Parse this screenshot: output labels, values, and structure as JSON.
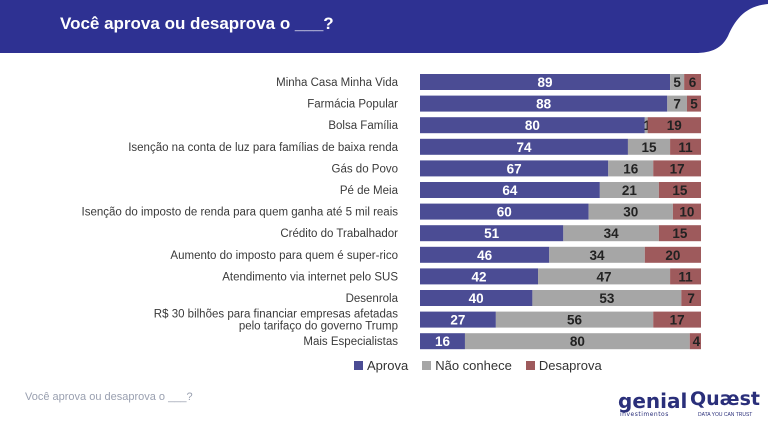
{
  "header": {
    "title": "Você aprova ou desaprova o ___?"
  },
  "footer": {
    "text": "Você aprova ou desaprova o ___?"
  },
  "logos": {
    "genial": "genial",
    "genial_sub": "investimentos",
    "quaest": "Quæst",
    "quaest_tagline": "DATA YOU CAN TRUST"
  },
  "colors": {
    "header": "#2e3192",
    "aprova": "#4b4c94",
    "nao_conhece": "#a6a6a6",
    "desaprova": "#9e5a5c"
  },
  "chart_data": {
    "type": "bar",
    "orientation": "horizontal",
    "stacked": true,
    "categories": [
      "Minha Casa Minha Vida",
      "Farmácia Popular",
      "Bolsa Família",
      "Isenção na conta de luz para famílias de baixa renda",
      "Gás do Povo",
      "Pé de Meia",
      "Isenção do imposto de renda para quem ganha até 5 mil reais",
      "Crédito do Trabalhador",
      "Aumento do imposto para quem é super-rico",
      "Atendimento via internet pelo SUS",
      "Desenrola",
      "R$ 30 bilhões para financiar empresas afetadas pelo tarifaço do governo Trump",
      "Mais Especialistas"
    ],
    "series": [
      {
        "name": "Aprova",
        "values": [
          89,
          88,
          80,
          74,
          67,
          64,
          60,
          51,
          46,
          42,
          40,
          27,
          16
        ]
      },
      {
        "name": "Não conhece",
        "values": [
          5,
          7,
          1,
          15,
          16,
          21,
          30,
          34,
          34,
          47,
          53,
          56,
          80
        ]
      },
      {
        "name": "Desaprova",
        "values": [
          6,
          5,
          19,
          11,
          17,
          15,
          10,
          15,
          20,
          11,
          7,
          17,
          4
        ]
      }
    ],
    "xlim": [
      0,
      100
    ],
    "legend": "bottom"
  }
}
